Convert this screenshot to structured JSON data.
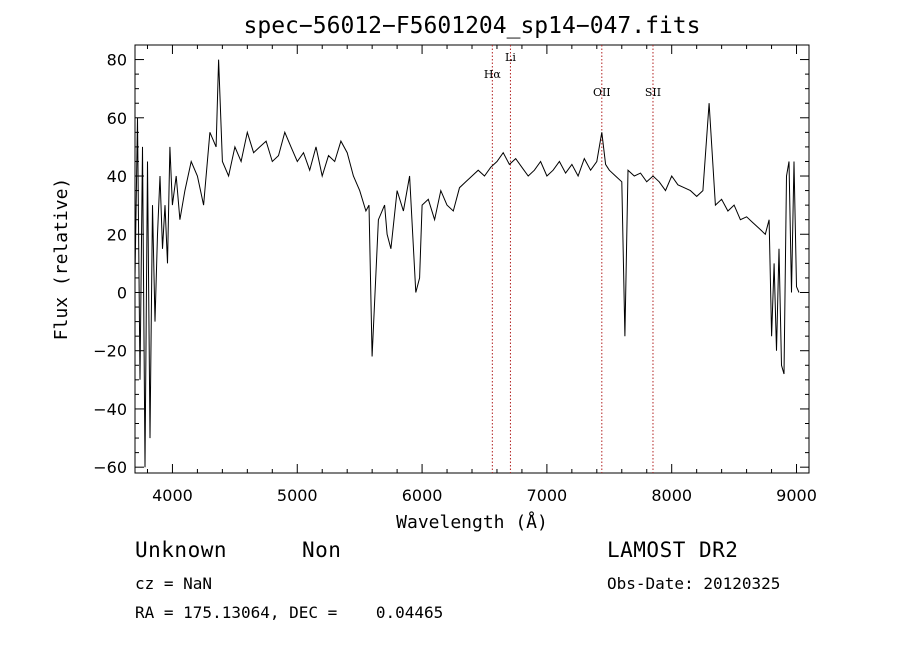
{
  "chart_data": {
    "type": "line",
    "title": "spec−56012−F5601204_sp14−047.fits",
    "xlabel": "Wavelength (Å)",
    "ylabel": "Flux (relative)",
    "xlim": [
      3700,
      9100
    ],
    "ylim": [
      -62,
      85
    ],
    "xticks": [
      4000,
      5000,
      6000,
      7000,
      8000,
      9000
    ],
    "xtick_labels": [
      "4000",
      "5000",
      "6000",
      "7000",
      "8000",
      "9000"
    ],
    "yticks": [
      -60,
      -40,
      -20,
      0,
      20,
      40,
      60,
      80
    ],
    "ytick_labels": [
      "−60",
      "−40",
      "−20",
      "0",
      "20",
      "40",
      "60",
      "80"
    ],
    "grid": false,
    "line_color": "#000000",
    "marker_color": "#b22222",
    "lines": [
      {
        "label": "Hα",
        "x": 6563
      },
      {
        "label": "Li",
        "x": 6708
      },
      {
        "label": "OII",
        "x": 7440
      },
      {
        "label": "SII",
        "x": 7850
      }
    ],
    "series": [
      {
        "x": [
          3700,
          3720,
          3740,
          3760,
          3780,
          3800,
          3820,
          3840,
          3860,
          3880,
          3900,
          3920,
          3940,
          3960,
          3980,
          4000,
          4030,
          4060,
          4100,
          4150,
          4200,
          4250,
          4300,
          4350,
          4370,
          4400,
          4450,
          4500,
          4550,
          4600,
          4650,
          4700,
          4750,
          4800,
          4850,
          4900,
          4950,
          5000,
          5050,
          5100,
          5150,
          5200,
          5250,
          5300,
          5350,
          5400,
          5450,
          5500,
          5550,
          5575,
          5600,
          5650,
          5700,
          5720,
          5750,
          5800,
          5850,
          5900,
          5950,
          5980,
          6000,
          6050,
          6100,
          6150,
          6200,
          6250,
          6300,
          6350,
          6400,
          6450,
          6500,
          6550,
          6600,
          6650,
          6700,
          6750,
          6800,
          6850,
          6900,
          6950,
          7000,
          7050,
          7100,
          7150,
          7200,
          7250,
          7300,
          7350,
          7400,
          7440,
          7470,
          7500,
          7550,
          7600,
          7625,
          7650,
          7700,
          7750,
          7800,
          7850,
          7900,
          7950,
          8000,
          8050,
          8100,
          8150,
          8200,
          8250,
          8300,
          8350,
          8400,
          8450,
          8500,
          8550,
          8600,
          8650,
          8700,
          8750,
          8780,
          8800,
          8820,
          8840,
          8860,
          8880,
          8900,
          8920,
          8940,
          8960,
          8980,
          9000,
          9020
        ],
        "values": [
          5,
          60,
          -30,
          50,
          -60,
          45,
          -50,
          30,
          -10,
          20,
          40,
          15,
          30,
          10,
          50,
          30,
          40,
          25,
          35,
          45,
          40,
          30,
          55,
          50,
          80,
          45,
          40,
          50,
          45,
          55,
          48,
          50,
          52,
          45,
          47,
          55,
          50,
          45,
          48,
          42,
          50,
          40,
          47,
          45,
          52,
          48,
          40,
          35,
          28,
          30,
          -22,
          25,
          30,
          20,
          15,
          35,
          28,
          40,
          0,
          5,
          30,
          32,
          25,
          35,
          30,
          28,
          36,
          38,
          40,
          42,
          40,
          43,
          45,
          48,
          44,
          46,
          43,
          40,
          42,
          45,
          40,
          42,
          45,
          41,
          44,
          40,
          46,
          42,
          45,
          55,
          44,
          42,
          40,
          38,
          -15,
          42,
          40,
          41,
          38,
          40,
          38,
          35,
          40,
          37,
          36,
          35,
          33,
          35,
          65,
          30,
          32,
          28,
          30,
          25,
          26,
          24,
          22,
          20,
          25,
          -15,
          10,
          -20,
          15,
          -25,
          -28,
          40,
          45,
          0,
          45,
          2,
          0
        ]
      }
    ]
  },
  "info": {
    "object_class": "Unknown",
    "subclass": "Non",
    "survey": "LAMOST DR2",
    "cz": "cz = NaN",
    "obs_date": "Obs-Date: 20120325",
    "coords": "RA = 175.13064, DEC =    0.04465"
  }
}
